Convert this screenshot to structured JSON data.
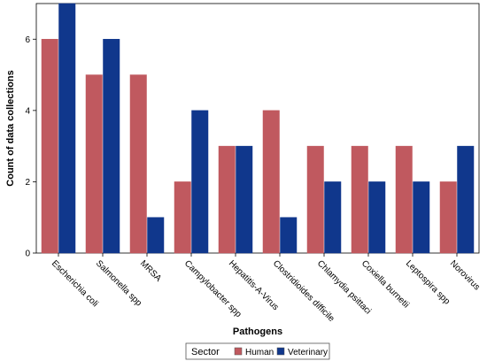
{
  "chart_data": {
    "type": "bar",
    "categories": [
      "Escherichia coli",
      "Salmonella spp",
      "MRSA",
      "Campylobacter spp",
      "Hepatitis-A-Virus",
      "Clostridioides difficile",
      "Chlamydia psittaci",
      "Coxiella burnetii",
      "Leptospira spp",
      "Norovirus"
    ],
    "series": [
      {
        "name": "Human",
        "color": "#c0595f",
        "values": [
          6,
          5,
          5,
          2,
          3,
          4,
          3,
          3,
          3,
          2
        ]
      },
      {
        "name": "Veterinary",
        "color": "#10378c",
        "values": [
          7,
          6,
          1,
          4,
          3,
          1,
          2,
          2,
          2,
          3
        ]
      }
    ],
    "xlabel": "Pathogens",
    "ylabel": "Count of data collections",
    "ylim": [
      0,
      7
    ],
    "yticks": [
      0,
      2,
      4,
      6
    ],
    "legend_title": "Sector",
    "legend_position": "bottom-center",
    "grid": false
  }
}
